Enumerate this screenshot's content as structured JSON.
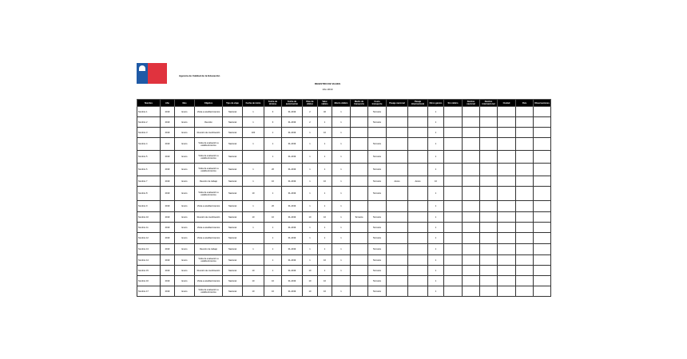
{
  "header": {
    "logo_text": "Gobierno de Chile",
    "organization": "Agencia de Calidad de la Educación",
    "title": "REGISTRO DE VIAJES",
    "subtitle": "Año 2019"
  },
  "columns": [
    "Nombre",
    "Año",
    "Mes",
    "Objetivo",
    "Tipo de viaje",
    "Fecha de inicio",
    "Fecha de término",
    "Fecha de autorización",
    "Días de viático",
    "Valor viático",
    "Monto viático",
    "Medio de transporte",
    "Costo transporte",
    "Pasaje nacional",
    "Pasaje internacional",
    "Otros gastos",
    "Sin viático",
    "Destino nacional",
    "Destino internacional",
    "Ciudad",
    "País",
    "Observaciones"
  ],
  "rows": [
    [
      "Nombre 1",
      "2019",
      "Enero",
      "Visita a establecimientos",
      "Nacional",
      "1",
      "3",
      "01-2019",
      "2",
      "40",
      "1",
      "",
      "Terrestre",
      "",
      "",
      "1",
      "",
      "",
      "",
      "",
      "",
      ""
    ],
    [
      "Nombre 2",
      "2019",
      "Enero",
      "Reunión",
      "Nacional",
      "1",
      "3",
      "01-2019",
      "2",
      "1",
      "1",
      "",
      "Terrestre",
      "",
      "",
      "1",
      "",
      "",
      "",
      "",
      "",
      ""
    ],
    [
      "Nombre 3",
      "2019",
      "Enero",
      "Reunión de coordinación",
      "Nacional",
      "100",
      "1",
      "01-2019",
      "1",
      "10",
      "1",
      "",
      "",
      "",
      "",
      "1",
      "",
      "",
      "",
      "",
      "",
      ""
    ],
    [
      "Nombre 4",
      "2019",
      "Enero",
      "Visita de evaluación a establecimientos",
      "Nacional",
      "1",
      "1",
      "01-2019",
      "1",
      "1",
      "1",
      "",
      "Terrestre",
      "",
      "",
      "1",
      "",
      "",
      "",
      "",
      "",
      ""
    ],
    [
      "Nombre 5",
      "2019",
      "Enero",
      "Visita de evaluación a establecimientos",
      "Nacional",
      "",
      "1",
      "01-2019",
      "1",
      "1",
      "1",
      "",
      "Terrestre",
      "",
      "",
      "1",
      "",
      "",
      "",
      "",
      "",
      ""
    ],
    [
      "Nombre 6",
      "2019",
      "Enero",
      "Visita de evaluación a establecimientos",
      "Nacional",
      "1",
      "20",
      "01-2019",
      "1",
      "1",
      "1",
      "",
      "Terrestre",
      "",
      "",
      "1",
      "",
      "",
      "",
      "",
      "",
      ""
    ],
    [
      "Nombre 7",
      "2019",
      "Enero",
      "Reunión de trabajo",
      "Nacional",
      "1",
      "10",
      "01-2019",
      "1",
      "10",
      "1",
      "",
      "Terrestre",
      "Aéreo",
      "Aéreo",
      "10",
      "",
      "",
      "",
      "",
      "",
      ""
    ],
    [
      "Nombre 8",
      "2019",
      "Enero",
      "Visita de evaluación a establecimientos",
      "Nacional",
      "10",
      "1",
      "01-2019",
      "1",
      "1",
      "1",
      "",
      "Terrestre",
      "",
      "",
      "1",
      "",
      "",
      "",
      "",
      "",
      ""
    ],
    [
      "Nombre 9",
      "2019",
      "Enero",
      "Visita a establecimientos",
      "Nacional",
      "1",
      "20",
      "01-2019",
      "1",
      "1",
      "1",
      "",
      "",
      "",
      "",
      "1",
      "",
      "",
      "",
      "",
      "",
      ""
    ],
    [
      "Nombre 10",
      "2019",
      "Enero",
      "Reunión de coordinación",
      "Nacional",
      "10",
      "10",
      "01-2019",
      "10",
      "10",
      "1",
      "Terrestre",
      "Terrestre",
      "",
      "",
      "1",
      "",
      "",
      "",
      "",
      "",
      ""
    ],
    [
      "Nombre 11",
      "2019",
      "Enero",
      "Visita a establecimientos",
      "Nacional",
      "1",
      "1",
      "01-2019",
      "1",
      "1",
      "1",
      "",
      "Terrestre",
      "",
      "",
      "1",
      "",
      "",
      "",
      "",
      "",
      ""
    ],
    [
      "Nombre 12",
      "2019",
      "Enero",
      "Visita a establecimientos",
      "Nacional",
      "",
      "1",
      "01-2019",
      "1",
      "1",
      "1",
      "",
      "Terrestre",
      "",
      "",
      "1",
      "",
      "",
      "",
      "",
      "",
      ""
    ],
    [
      "Nombre 13",
      "2019",
      "Enero",
      "Reunión de trabajo",
      "Nacional",
      "1",
      "1",
      "01-2019",
      "1",
      "1",
      "1",
      "",
      "Terrestre",
      "",
      "",
      "1",
      "",
      "",
      "",
      "",
      "",
      ""
    ],
    [
      "Nombre 14",
      "2019",
      "Enero",
      "Visita de evaluación a establecimientos",
      "Nacional",
      "",
      "1",
      "01-2019",
      "1",
      "10",
      "1",
      "",
      "Terrestre",
      "",
      "",
      "1",
      "",
      "",
      "",
      "",
      "",
      ""
    ],
    [
      "Nombre 15",
      "2019",
      "Enero",
      "Reunión de coordinación",
      "Nacional",
      "10",
      "1",
      "01-2019",
      "10",
      "1",
      "1",
      "",
      "Terrestre",
      "",
      "",
      "1",
      "",
      "",
      "",
      "",
      "",
      ""
    ],
    [
      "Nombre 16",
      "2019",
      "Enero",
      "Visita a establecimientos",
      "Nacional",
      "10",
      "10",
      "01-2019",
      "10",
      "10",
      "",
      "",
      "Terrestre",
      "",
      "",
      "1",
      "",
      "",
      "",
      "",
      "",
      ""
    ],
    [
      "Nombre 17",
      "2019",
      "Enero",
      "Visita de evaluación a establecimientos",
      "Nacional",
      "10",
      "10",
      "01-2019",
      "10",
      "10",
      "1",
      "",
      "Terrestre",
      "",
      "",
      "1",
      "",
      "",
      "",
      "",
      "",
      ""
    ]
  ]
}
